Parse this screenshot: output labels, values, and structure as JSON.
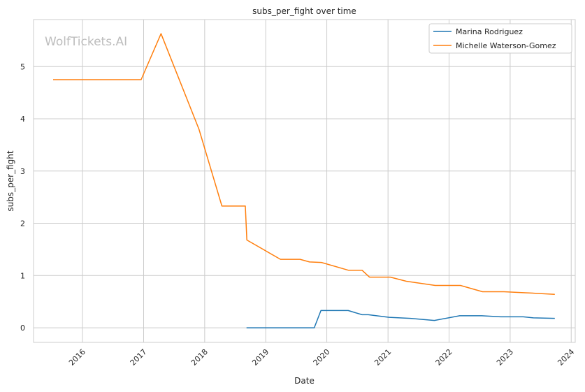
{
  "chart_data": {
    "type": "line",
    "title": "subs_per_fight over time",
    "xlabel": "Date",
    "ylabel": "subs_per_fight",
    "watermark": "WolfTickets.AI",
    "xlim": [
      "2015-03-15",
      "2024-01-25"
    ],
    "ylim": [
      -0.28,
      5.9
    ],
    "x_ticks": [
      "2016-01-01",
      "2017-01-01",
      "2018-01-01",
      "2019-01-01",
      "2020-01-01",
      "2021-01-01",
      "2022-01-01",
      "2023-01-01",
      "2024-01-01"
    ],
    "x_tick_labels": [
      "2016",
      "2017",
      "2018",
      "2019",
      "2020",
      "2021",
      "2022",
      "2023",
      "2024"
    ],
    "y_ticks": [
      0,
      1,
      2,
      3,
      4,
      5
    ],
    "y_tick_labels": [
      "0",
      "1",
      "2",
      "3",
      "4",
      "5"
    ],
    "grid": true,
    "legend_position": "top-right",
    "series": [
      {
        "name": "Marina Rodriguez",
        "color": "#1f77b4",
        "points": [
          [
            "2018-09-08",
            0.0
          ],
          [
            "2019-10-18",
            0.0
          ],
          [
            "2019-11-27",
            0.33
          ],
          [
            "2020-05-08",
            0.33
          ],
          [
            "2020-07-30",
            0.25
          ],
          [
            "2020-09-05",
            0.25
          ],
          [
            "2021-01-08",
            0.2
          ],
          [
            "2021-05-15",
            0.18
          ],
          [
            "2021-10-05",
            0.14
          ],
          [
            "2022-03-05",
            0.23
          ],
          [
            "2022-07-15",
            0.23
          ],
          [
            "2022-11-05",
            0.21
          ],
          [
            "2023-03-20",
            0.21
          ],
          [
            "2023-05-20",
            0.19
          ],
          [
            "2023-09-25",
            0.18
          ]
        ]
      },
      {
        "name": "Michelle Waterson-Gomez",
        "color": "#ff7f0e",
        "points": [
          [
            "2015-07-10",
            4.75
          ],
          [
            "2016-12-17",
            4.75
          ],
          [
            "2017-04-15",
            5.63
          ],
          [
            "2017-11-28",
            3.8
          ],
          [
            "2018-04-14",
            2.33
          ],
          [
            "2018-09-01",
            2.33
          ],
          [
            "2018-09-10",
            1.68
          ],
          [
            "2019-03-30",
            1.31
          ],
          [
            "2019-07-25",
            1.31
          ],
          [
            "2019-09-20",
            1.26
          ],
          [
            "2019-11-30",
            1.25
          ],
          [
            "2020-05-10",
            1.1
          ],
          [
            "2020-07-30",
            1.1
          ],
          [
            "2020-09-12",
            0.97
          ],
          [
            "2021-01-15",
            0.97
          ],
          [
            "2021-04-20",
            0.89
          ],
          [
            "2021-10-10",
            0.81
          ],
          [
            "2022-03-10",
            0.81
          ],
          [
            "2022-07-20",
            0.69
          ],
          [
            "2022-11-25",
            0.69
          ],
          [
            "2023-04-01",
            0.67
          ],
          [
            "2023-06-01",
            0.66
          ],
          [
            "2023-09-25",
            0.64
          ]
        ]
      }
    ]
  }
}
